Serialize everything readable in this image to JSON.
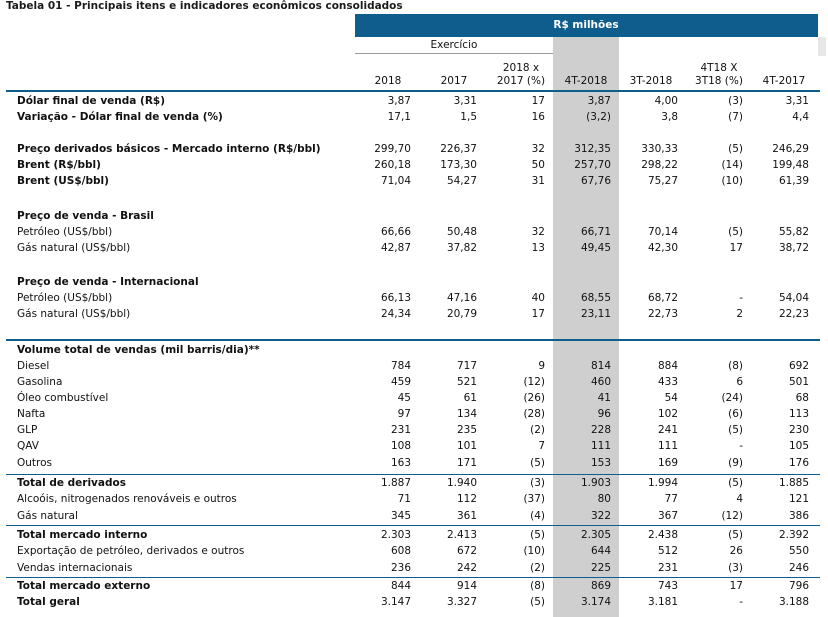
{
  "title": "Tabela 01 - Principais itens e indicadores econômicos consolidados",
  "currency_band": "R$ milhões",
  "exercicio_label": "Exercício",
  "columns": [
    {
      "line1": "",
      "line2": "2018"
    },
    {
      "line1": "",
      "line2": "2017"
    },
    {
      "line1": "2018 x",
      "line2": "2017 (%)"
    },
    {
      "line1": "",
      "line2": "4T-2018"
    },
    {
      "line1": "",
      "line2": "3T-2018"
    },
    {
      "line1": "4T18 X",
      "line2": "3T18 (%)"
    },
    {
      "line1": "",
      "line2": "4T-2017"
    }
  ],
  "colors": {
    "header_band": "#0f5d8c",
    "highlight_column": "#cfcfcf",
    "rule": "#0f5d8c"
  },
  "rows": [
    {
      "label": "Dólar final de venda (R$)",
      "bold": true,
      "values": [
        "3,87",
        "3,31",
        "17",
        "3,87",
        "4,00",
        "(3)",
        "3,31"
      ]
    },
    {
      "label": "Variação - Dólar final de venda (%)",
      "bold": true,
      "values": [
        "17,1",
        "1,5",
        "16",
        "(3,2)",
        "3,8",
        "(7)",
        "4,4"
      ]
    },
    {
      "label": "Preço derivados básicos - Mercado interno (R$/bbl)",
      "bold": true,
      "values": [
        "299,70",
        "226,37",
        "32",
        "312,35",
        "330,33",
        "(5)",
        "246,29"
      ]
    },
    {
      "label": "Brent (R$/bbl)",
      "bold": true,
      "values": [
        "260,18",
        "173,30",
        "50",
        "257,70",
        "298,22",
        "(14)",
        "199,48"
      ]
    },
    {
      "label": "Brent (US$/bbl)",
      "bold": true,
      "values": [
        "71,04",
        "54,27",
        "31",
        "67,76",
        "75,27",
        "(10)",
        "61,39"
      ]
    },
    {
      "label": "Preço de venda - Brasil",
      "bold": true,
      "values": [
        "",
        "",
        "",
        "",
        "",
        "",
        ""
      ]
    },
    {
      "label": "Petróleo (US$/bbl)",
      "bold": false,
      "values": [
        "66,66",
        "50,48",
        "32",
        "66,71",
        "70,14",
        "(5)",
        "55,82"
      ]
    },
    {
      "label": "Gás natural (US$/bbl)",
      "bold": false,
      "values": [
        "42,87",
        "37,82",
        "13",
        "49,45",
        "42,30",
        "17",
        "38,72"
      ]
    },
    {
      "label": "Preço de venda - Internacional",
      "bold": true,
      "values": [
        "",
        "",
        "",
        "",
        "",
        "",
        ""
      ]
    },
    {
      "label": "Petróleo (US$/bbl)",
      "bold": false,
      "values": [
        "66,13",
        "47,16",
        "40",
        "68,55",
        "68,72",
        "-",
        "54,04"
      ]
    },
    {
      "label": "Gás natural (US$/bbl)",
      "bold": false,
      "values": [
        "24,34",
        "20,79",
        "17",
        "23,11",
        "22,73",
        "2",
        "22,23"
      ]
    },
    {
      "label": "Volume total de vendas (mil barris/dia)**",
      "bold": true,
      "values": [
        "",
        "",
        "",
        "",
        "",
        "",
        ""
      ]
    },
    {
      "label": "Diesel",
      "bold": false,
      "values": [
        "784",
        "717",
        "9",
        "814",
        "884",
        "(8)",
        "692"
      ]
    },
    {
      "label": "Gasolina",
      "bold": false,
      "values": [
        "459",
        "521",
        "(12)",
        "460",
        "433",
        "6",
        "501"
      ]
    },
    {
      "label": "Óleo combustível",
      "bold": false,
      "values": [
        "45",
        "61",
        "(26)",
        "41",
        "54",
        "(24)",
        "68"
      ]
    },
    {
      "label": "Nafta",
      "bold": false,
      "values": [
        "97",
        "134",
        "(28)",
        "96",
        "102",
        "(6)",
        "113"
      ]
    },
    {
      "label": "GLP",
      "bold": false,
      "values": [
        "231",
        "235",
        "(2)",
        "228",
        "241",
        "(5)",
        "230"
      ]
    },
    {
      "label": "QAV",
      "bold": false,
      "values": [
        "108",
        "101",
        "7",
        "111",
        "111",
        "-",
        "105"
      ]
    },
    {
      "label": "Outros",
      "bold": false,
      "values": [
        "163",
        "171",
        "(5)",
        "153",
        "169",
        "(9)",
        "176"
      ]
    },
    {
      "label": "Total de derivados",
      "bold": true,
      "values": [
        "1.887",
        "1.940",
        "(3)",
        "1.903",
        "1.994",
        "(5)",
        "1.885"
      ]
    },
    {
      "label": "Alcoóis, nitrogenados renováveis e outros",
      "bold": false,
      "values": [
        "71",
        "112",
        "(37)",
        "80",
        "77",
        "4",
        "121"
      ]
    },
    {
      "label": "Gás natural",
      "bold": false,
      "values": [
        "345",
        "361",
        "(4)",
        "322",
        "367",
        "(12)",
        "386"
      ]
    },
    {
      "label": "Total mercado interno",
      "bold": true,
      "values": [
        "2.303",
        "2.413",
        "(5)",
        "2.305",
        "2.438",
        "(5)",
        "2.392"
      ]
    },
    {
      "label": "Exportação de petróleo, derivados e outros",
      "bold": false,
      "values": [
        "608",
        "672",
        "(10)",
        "644",
        "512",
        "26",
        "550"
      ]
    },
    {
      "label": "Vendas internacionais",
      "bold": false,
      "values": [
        "236",
        "242",
        "(2)",
        "225",
        "231",
        "(3)",
        "246"
      ]
    },
    {
      "label": "Total mercado externo",
      "bold": true,
      "values": [
        "844",
        "914",
        "(8)",
        "869",
        "743",
        "17",
        "796"
      ]
    },
    {
      "label": "Total geral",
      "bold": true,
      "values": [
        "3.147",
        "3.327",
        "(5)",
        "3.174",
        "3.181",
        "-",
        "3.188"
      ]
    }
  ]
}
